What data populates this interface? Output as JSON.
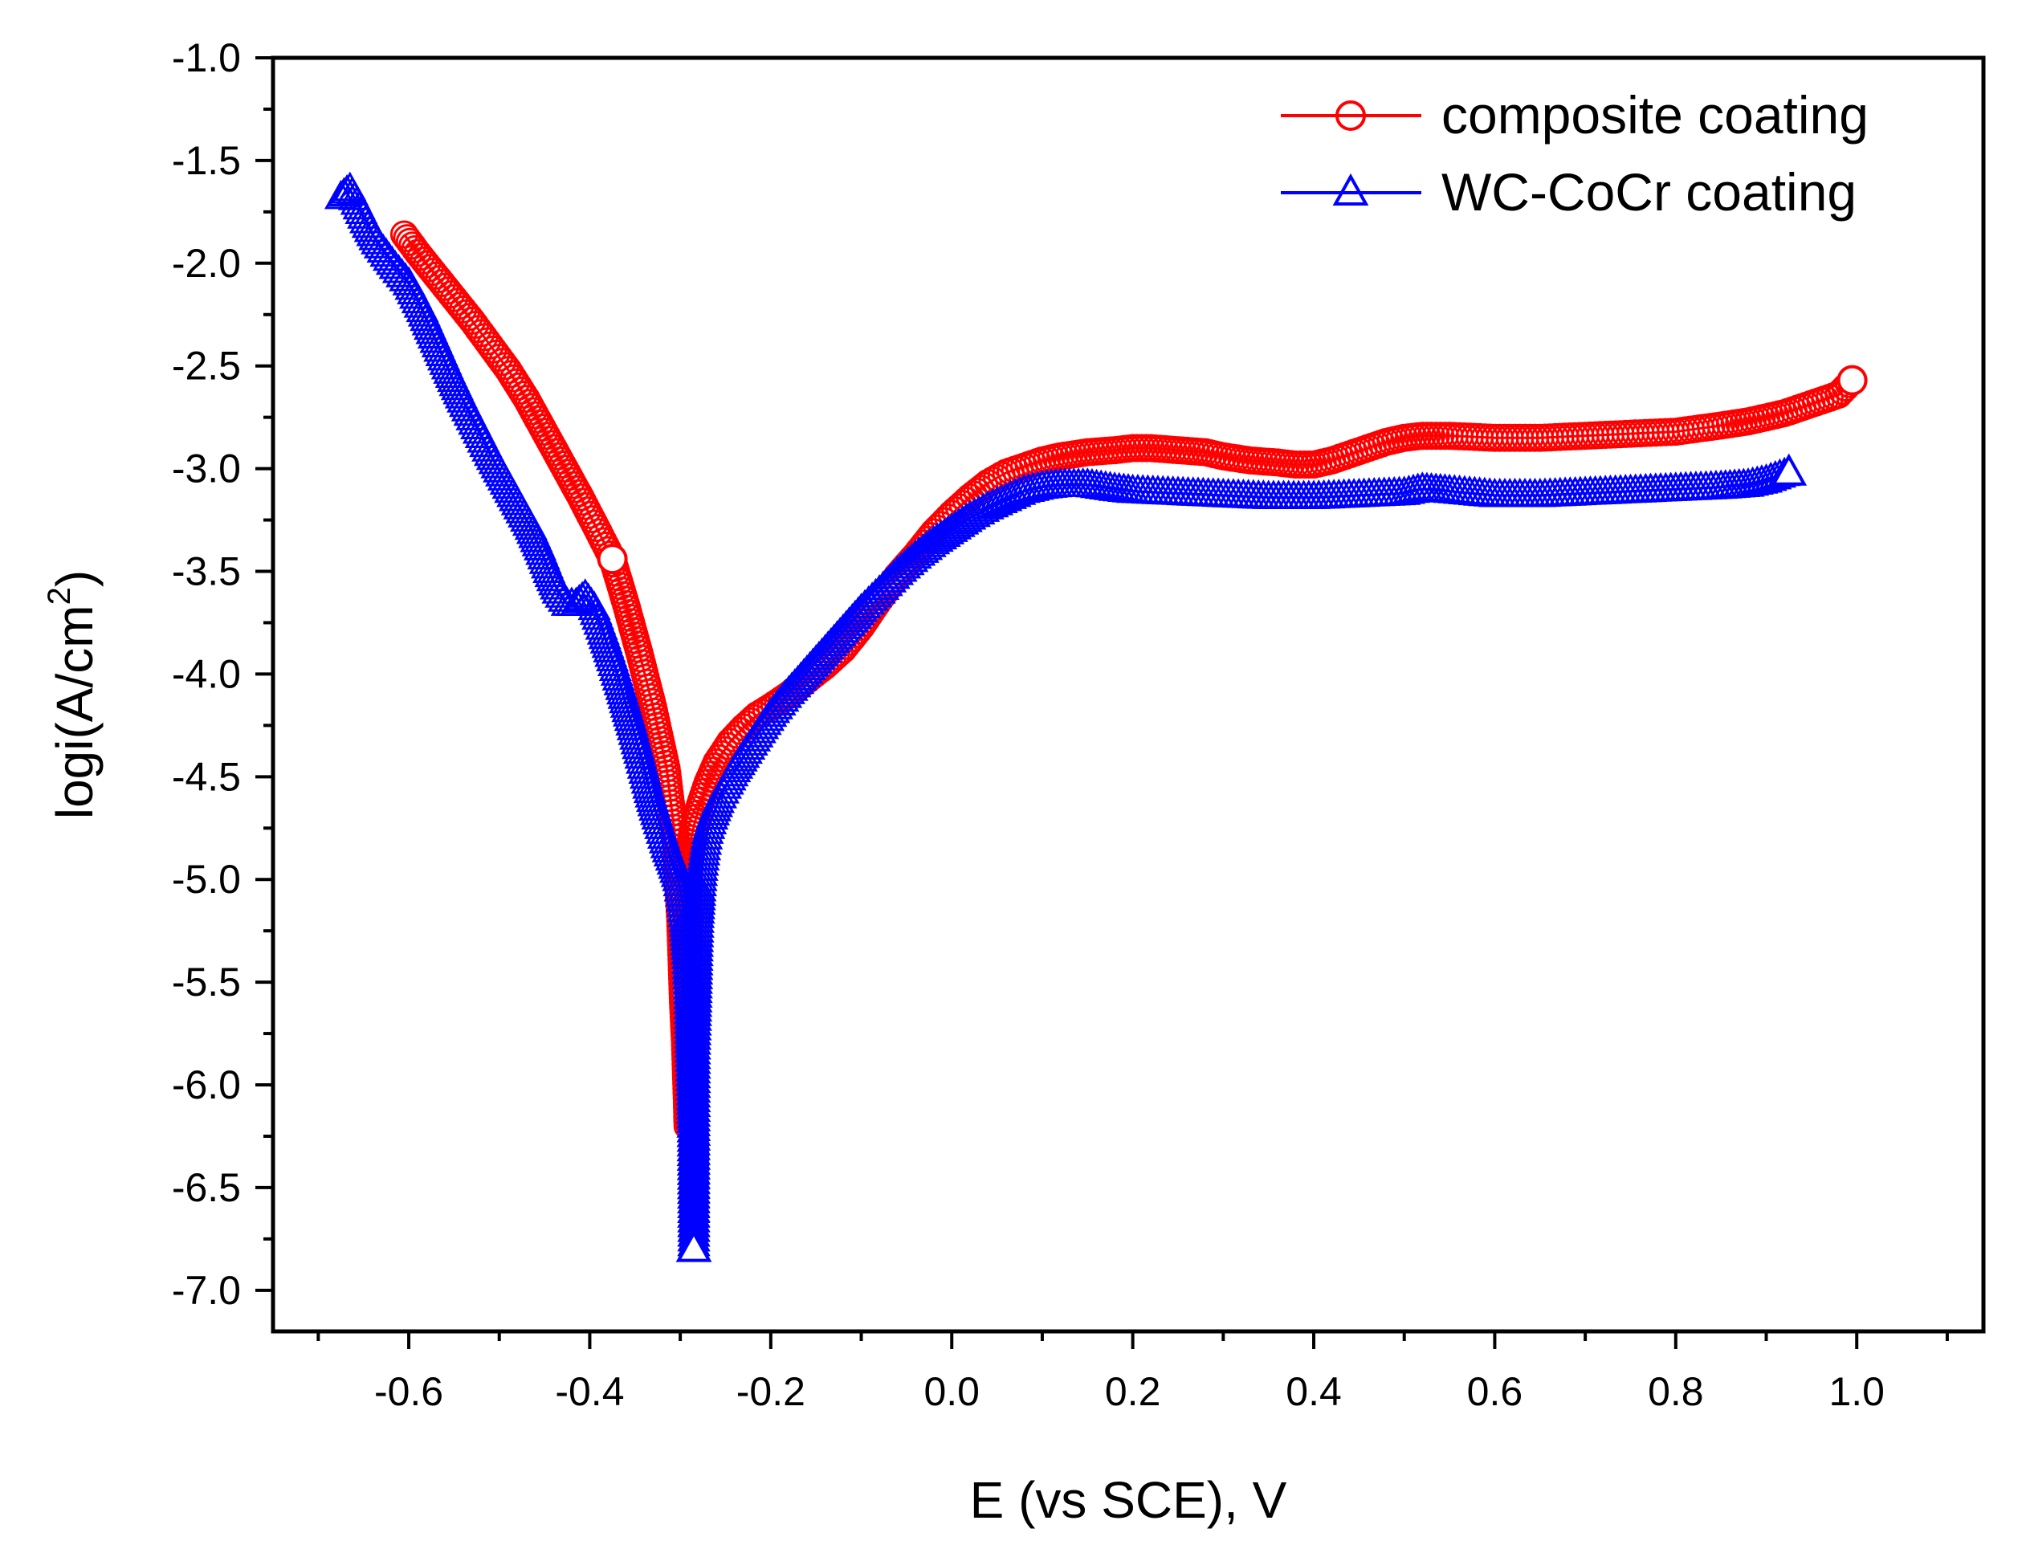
{
  "chart_data": {
    "type": "scatter",
    "title": "",
    "xlabel": "E (vs SCE), V",
    "ylabel_main": "logi(A/cm",
    "ylabel_sup": "2",
    "ylabel_end": ")",
    "xlim": [
      -0.75,
      1.14
    ],
    "ylim": [
      -7.2,
      -1.0
    ],
    "xticks": [
      -0.6,
      -0.4,
      -0.2,
      0.0,
      0.2,
      0.4,
      0.6,
      0.8,
      1.0
    ],
    "xtick_labels": [
      "-0.6",
      "-0.4",
      "-0.2",
      "0.0",
      "0.2",
      "0.4",
      "0.6",
      "0.8",
      "1.0"
    ],
    "yticks": [
      -1.0,
      -1.5,
      -2.0,
      -2.5,
      -3.0,
      -3.5,
      -4.0,
      -4.5,
      -5.0,
      -5.5,
      -6.0,
      -6.5,
      -7.0
    ],
    "ytick_labels": [
      "-1.0",
      "-1.5",
      "-2.0",
      "-2.5",
      "-3.0",
      "-3.5",
      "-4.0",
      "-4.5",
      "-5.0",
      "-5.5",
      "-6.0",
      "-6.5",
      "-7.0"
    ],
    "legend_position": "top-right",
    "series": [
      {
        "name": "composite coating",
        "color": "#ff0000",
        "marker": "circle",
        "x": [
          -0.605,
          -0.59,
          -0.57,
          -0.55,
          -0.53,
          -0.51,
          -0.49,
          -0.47,
          -0.45,
          -0.43,
          -0.41,
          -0.39,
          -0.375,
          -0.36,
          -0.345,
          -0.33,
          -0.315,
          -0.305,
          -0.3,
          -0.297,
          -0.295,
          -0.293,
          -0.292,
          -0.291,
          -0.29,
          -0.288,
          -0.285,
          -0.28,
          -0.27,
          -0.26,
          -0.245,
          -0.23,
          -0.215,
          -0.2,
          -0.18,
          -0.16,
          -0.14,
          -0.12,
          -0.1,
          -0.08,
          -0.06,
          -0.04,
          -0.02,
          0.0,
          0.02,
          0.04,
          0.06,
          0.08,
          0.1,
          0.12,
          0.15,
          0.18,
          0.2,
          0.22,
          0.25,
          0.28,
          0.3,
          0.33,
          0.36,
          0.38,
          0.4,
          0.42,
          0.44,
          0.46,
          0.48,
          0.5,
          0.52,
          0.55,
          0.6,
          0.65,
          0.7,
          0.75,
          0.8,
          0.85,
          0.88,
          0.9,
          0.92,
          0.94,
          0.96,
          0.98,
          0.995
        ],
        "y": [
          -1.86,
          -1.95,
          -2.06,
          -2.17,
          -2.28,
          -2.4,
          -2.52,
          -2.66,
          -2.82,
          -2.98,
          -3.14,
          -3.31,
          -3.44,
          -3.66,
          -3.9,
          -4.16,
          -4.46,
          -4.82,
          -5.2,
          -5.6,
          -5.78,
          -6.04,
          -6.2,
          -5.5,
          -4.98,
          -4.8,
          -4.74,
          -4.66,
          -4.53,
          -4.43,
          -4.33,
          -4.26,
          -4.2,
          -4.16,
          -4.1,
          -4.03,
          -3.96,
          -3.88,
          -3.77,
          -3.64,
          -3.52,
          -3.42,
          -3.31,
          -3.22,
          -3.14,
          -3.07,
          -3.02,
          -2.99,
          -2.96,
          -2.94,
          -2.92,
          -2.91,
          -2.9,
          -2.9,
          -2.91,
          -2.92,
          -2.94,
          -2.96,
          -2.97,
          -2.98,
          -2.98,
          -2.96,
          -2.93,
          -2.9,
          -2.87,
          -2.85,
          -2.84,
          -2.84,
          -2.85,
          -2.85,
          -2.84,
          -2.83,
          -2.82,
          -2.79,
          -2.77,
          -2.75,
          -2.73,
          -2.7,
          -2.67,
          -2.64,
          -2.57
        ]
      },
      {
        "name": "WC-CoCr coating",
        "color": "#0000ff",
        "marker": "triangle",
        "x": [
          -0.675,
          -0.665,
          -0.655,
          -0.645,
          -0.635,
          -0.625,
          -0.615,
          -0.6,
          -0.585,
          -0.57,
          -0.555,
          -0.54,
          -0.525,
          -0.51,
          -0.495,
          -0.48,
          -0.465,
          -0.455,
          -0.445,
          -0.435,
          -0.425,
          -0.415,
          -0.405,
          -0.395,
          -0.385,
          -0.375,
          -0.365,
          -0.355,
          -0.345,
          -0.335,
          -0.325,
          -0.315,
          -0.308,
          -0.302,
          -0.298,
          -0.295,
          -0.292,
          -0.29,
          -0.289,
          -0.288,
          -0.287,
          -0.286,
          -0.285,
          -0.284,
          -0.283,
          -0.282,
          -0.281,
          -0.28,
          -0.278,
          -0.276,
          -0.273,
          -0.27,
          -0.265,
          -0.258,
          -0.25,
          -0.24,
          -0.23,
          -0.215,
          -0.2,
          -0.18,
          -0.16,
          -0.14,
          -0.12,
          -0.1,
          -0.08,
          -0.06,
          -0.04,
          -0.02,
          0.0,
          0.02,
          0.04,
          0.06,
          0.08,
          0.1,
          0.12,
          0.15,
          0.18,
          0.2,
          0.25,
          0.3,
          0.35,
          0.4,
          0.45,
          0.5,
          0.52,
          0.55,
          0.6,
          0.65,
          0.7,
          0.75,
          0.8,
          0.85,
          0.88,
          0.9,
          0.925
        ],
        "y": [
          -1.68,
          -1.64,
          -1.73,
          -1.82,
          -1.9,
          -1.96,
          -2.02,
          -2.1,
          -2.23,
          -2.38,
          -2.53,
          -2.67,
          -2.8,
          -2.93,
          -3.05,
          -3.17,
          -3.29,
          -3.39,
          -3.5,
          -3.6,
          -3.66,
          -3.66,
          -3.62,
          -3.68,
          -3.8,
          -3.93,
          -4.07,
          -4.22,
          -4.38,
          -4.55,
          -4.7,
          -4.84,
          -4.92,
          -5.0,
          -5.1,
          -5.2,
          -5.38,
          -5.55,
          -5.72,
          -5.88,
          -6.02,
          -6.2,
          -6.8,
          -5.82,
          -5.68,
          -5.5,
          -5.32,
          -5.18,
          -5.05,
          -4.95,
          -4.85,
          -4.77,
          -4.7,
          -4.62,
          -4.55,
          -4.47,
          -4.4,
          -4.3,
          -4.2,
          -4.09,
          -3.99,
          -3.89,
          -3.79,
          -3.69,
          -3.6,
          -3.51,
          -3.43,
          -3.36,
          -3.3,
          -3.24,
          -3.19,
          -3.15,
          -3.11,
          -3.09,
          -3.08,
          -3.08,
          -3.1,
          -3.11,
          -3.12,
          -3.13,
          -3.14,
          -3.14,
          -3.13,
          -3.12,
          -3.1,
          -3.11,
          -3.13,
          -3.13,
          -3.12,
          -3.11,
          -3.1,
          -3.09,
          -3.08,
          -3.06,
          -3.02
        ]
      }
    ]
  }
}
